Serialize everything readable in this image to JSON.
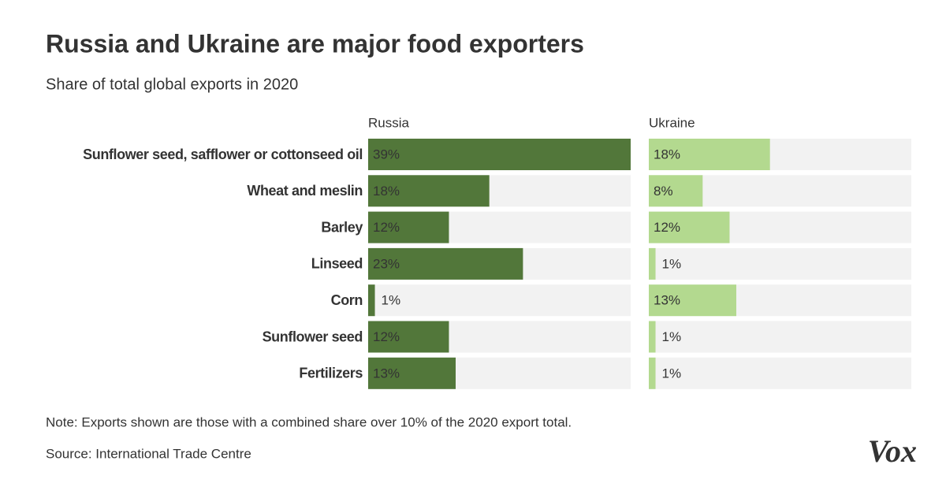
{
  "chart_data": {
    "type": "bar",
    "orientation": "horizontal",
    "title": "Russia and Ukraine are major food exporters",
    "subtitle": "Share of total global exports in 2020",
    "categories": [
      "Sunflower seed, safflower or cottonseed oil",
      "Wheat and meslin",
      "Barley",
      "Linseed",
      "Corn",
      "Sunflower seed",
      "Fertilizers"
    ],
    "series": [
      {
        "name": "Russia",
        "color": "#52773a",
        "values": [
          39,
          18,
          12,
          23,
          1,
          12,
          13
        ],
        "value_labels": [
          "39%",
          "18%",
          "12%",
          "23%",
          "1%",
          "12%",
          "13%"
        ]
      },
      {
        "name": "Ukraine",
        "color": "#b3d98f",
        "values": [
          18,
          8,
          12,
          1,
          13,
          1,
          1
        ],
        "value_labels": [
          "18%",
          "8%",
          "12%",
          "1%",
          "13%",
          "1%",
          "1%"
        ]
      }
    ],
    "xlim": [
      0,
      39
    ],
    "note": "Note: Exports shown are those with a combined share over 10% of the 2020 export total.",
    "source": "Source: International Trade Centre",
    "logo": "Vox"
  }
}
